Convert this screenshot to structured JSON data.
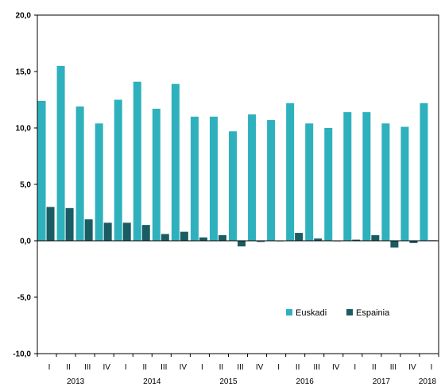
{
  "chart_data": {
    "type": "bar",
    "categories": [
      "I",
      "II",
      "III",
      "IV",
      "I",
      "II",
      "III",
      "IV",
      "I",
      "II",
      "III",
      "IV",
      "I",
      "II",
      "III",
      "IV",
      "I",
      "II",
      "III",
      "IV",
      "I"
    ],
    "years": [
      {
        "label": "2013",
        "start": 0,
        "end": 3
      },
      {
        "label": "2014",
        "start": 4,
        "end": 7
      },
      {
        "label": "2015",
        "start": 8,
        "end": 11
      },
      {
        "label": "2016",
        "start": 12,
        "end": 15
      },
      {
        "label": "2017",
        "start": 16,
        "end": 19
      },
      {
        "label": "2018",
        "start": 20,
        "end": 20
      }
    ],
    "series": [
      {
        "name": "Euskadi",
        "color": "#2eb1bd",
        "values": [
          12.4,
          15.5,
          11.9,
          10.4,
          12.5,
          14.1,
          11.7,
          13.9,
          11.0,
          11.0,
          9.7,
          11.2,
          10.7,
          12.2,
          10.4,
          10.0,
          11.4,
          11.4,
          10.4,
          10.1,
          12.2
        ]
      },
      {
        "name": "Espainia",
        "color": "#1a5c63",
        "values": [
          3.0,
          2.9,
          1.9,
          1.6,
          1.6,
          1.4,
          0.6,
          0.8,
          0.3,
          0.5,
          -0.5,
          -0.1,
          -0.05,
          0.7,
          0.2,
          -0.05,
          0.1,
          0.5,
          -0.6,
          -0.2,
          0.05
        ]
      }
    ],
    "ylim": [
      -10,
      20
    ],
    "yticks": [
      -10,
      -5,
      0,
      5,
      10,
      15,
      20
    ],
    "ytick_labels": [
      "-10,0",
      "-5,0",
      "0,0",
      "5,0",
      "10,0",
      "15,0",
      "20,0"
    ],
    "legend_position": "bottom-right",
    "grid": false
  }
}
